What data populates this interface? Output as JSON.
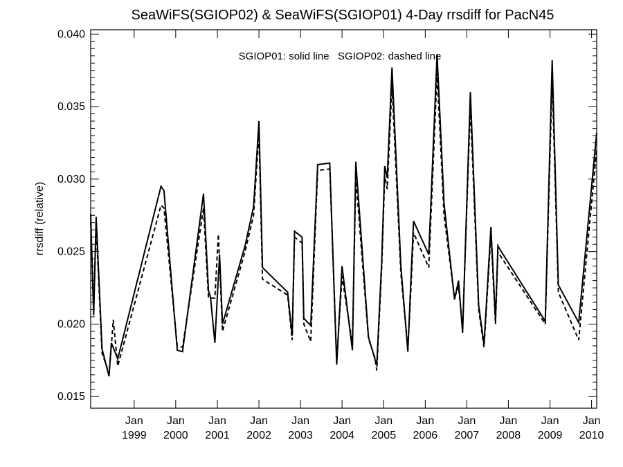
{
  "chart_data": {
    "type": "line",
    "title": "SeaWiFS(SGIOP02) & SeaWiFS(SGIOP01) 4-Day rrsdiff for PacN45",
    "ylabel": "rrsdiff (relative)",
    "xlabel": "",
    "annotation": "SGIOP01: solid line   SGIOP02: dashed line",
    "xlim": [
      "1997-12-15",
      "2010-02-15"
    ],
    "ylim": [
      0.0142,
      0.0403
    ],
    "y_ticks": [
      0.015,
      0.02,
      0.025,
      0.03,
      0.035,
      0.04
    ],
    "y_tick_labels": [
      "0.015",
      "0.020",
      "0.025",
      "0.030",
      "0.035",
      "0.040"
    ],
    "x_ticks": [
      {
        "date": "1999-01-01",
        "label_top": "Jan",
        "label_bottom": "1999"
      },
      {
        "date": "2000-01-01",
        "label_top": "Jan",
        "label_bottom": "2000"
      },
      {
        "date": "2001-01-01",
        "label_top": "Jan",
        "label_bottom": "2001"
      },
      {
        "date": "2002-01-01",
        "label_top": "Jan",
        "label_bottom": "2002"
      },
      {
        "date": "2003-01-01",
        "label_top": "Jan",
        "label_bottom": "2003"
      },
      {
        "date": "2004-01-01",
        "label_top": "Jan",
        "label_bottom": "2004"
      },
      {
        "date": "2005-01-01",
        "label_top": "Jan",
        "label_bottom": "2005"
      },
      {
        "date": "2006-01-01",
        "label_top": "Jan",
        "label_bottom": "2006"
      },
      {
        "date": "2007-01-01",
        "label_top": "Jan",
        "label_bottom": "2007"
      },
      {
        "date": "2008-01-01",
        "label_top": "Jan",
        "label_bottom": "2008"
      },
      {
        "date": "2009-01-01",
        "label_top": "Jan",
        "label_bottom": "2009"
      },
      {
        "date": "2010-01-01",
        "label_top": "Jan",
        "label_bottom": "2010"
      }
    ],
    "series": [
      {
        "name": "SGIOP01",
        "style": "solid",
        "x": [
          "1997-12-15",
          "1998-01-10",
          "1998-02-01",
          "1998-03-25",
          "1998-05-25",
          "1998-06-15",
          "1998-08-10",
          "1999-08-25",
          "1999-09-20",
          "2000-01-15",
          "2000-03-01",
          "2000-09-01",
          "2000-10-15",
          "2000-11-01",
          "2000-12-10",
          "2001-01-20",
          "2001-02-15",
          "2001-09-01",
          "2001-11-15",
          "2002-01-01",
          "2002-02-01",
          "2002-09-10",
          "2002-10-20",
          "2002-11-10",
          "2003-01-15",
          "2003-01-30",
          "2003-04-01",
          "2003-06-01",
          "2003-09-15",
          "2003-11-15",
          "2004-01-01",
          "2004-04-01",
          "2004-05-01",
          "2004-08-20",
          "2004-10-15",
          "2004-11-01",
          "2004-12-15",
          "2005-01-10",
          "2005-02-01",
          "2005-03-15",
          "2005-06-01",
          "2005-08-01",
          "2005-08-25",
          "2005-09-20",
          "2006-02-01",
          "2006-04-15",
          "2006-06-15",
          "2006-09-15",
          "2006-10-20",
          "2006-11-25",
          "2007-02-01",
          "2007-04-15",
          "2007-06-01",
          "2007-08-01",
          "2007-09-10",
          "2007-10-01",
          "2007-10-15",
          "2008-11-20",
          "2009-01-20",
          "2009-03-15",
          "2009-09-10",
          "2010-02-15"
        ],
        "y": [
          0.0276,
          0.0206,
          0.0274,
          0.0183,
          0.0164,
          0.0187,
          0.0176,
          0.0295,
          0.0292,
          0.0182,
          0.0181,
          0.029,
          0.0223,
          0.0219,
          0.0187,
          0.0248,
          0.02,
          0.0254,
          0.0281,
          0.034,
          0.0239,
          0.0222,
          0.0192,
          0.0264,
          0.026,
          0.0204,
          0.0199,
          0.031,
          0.0311,
          0.0172,
          0.024,
          0.0182,
          0.0312,
          0.0191,
          0.0176,
          0.0172,
          0.0244,
          0.0309,
          0.0301,
          0.0377,
          0.024,
          0.0181,
          0.0225,
          0.0271,
          0.0248,
          0.0386,
          0.0283,
          0.0217,
          0.023,
          0.0194,
          0.036,
          0.0213,
          0.0186,
          0.0267,
          0.0203,
          0.0254,
          0.0252,
          0.0202,
          0.0382,
          0.0227,
          0.0201,
          0.0332
        ]
      },
      {
        "name": "SGIOP02",
        "style": "dashed",
        "x": [
          "1997-12-15",
          "1998-01-10",
          "1998-02-01",
          "1998-03-25",
          "1998-05-25",
          "1998-06-15",
          "1998-07-01",
          "1998-08-10",
          "1999-08-25",
          "1999-09-20",
          "2000-01-15",
          "2000-03-01",
          "2000-09-01",
          "2000-10-15",
          "2000-11-01",
          "2000-12-10",
          "2001-01-10",
          "2001-02-15",
          "2001-09-01",
          "2001-11-15",
          "2002-01-01",
          "2002-02-01",
          "2002-09-10",
          "2002-10-20",
          "2002-11-10",
          "2003-01-15",
          "2003-01-30",
          "2003-04-01",
          "2003-06-01",
          "2003-09-15",
          "2003-11-15",
          "2004-01-01",
          "2004-04-01",
          "2004-05-01",
          "2004-08-20",
          "2004-10-15",
          "2004-11-01",
          "2004-12-15",
          "2005-01-10",
          "2005-02-01",
          "2005-03-15",
          "2005-06-01",
          "2005-08-01",
          "2005-08-25",
          "2005-09-20",
          "2006-02-01",
          "2006-04-15",
          "2006-06-15",
          "2006-09-15",
          "2006-10-20",
          "2006-11-25",
          "2007-02-01",
          "2007-04-15",
          "2007-06-01",
          "2007-08-01",
          "2007-09-10",
          "2007-10-01",
          "2007-10-15",
          "2008-11-20",
          "2009-01-20",
          "2009-03-15",
          "2009-09-10",
          "2010-02-15"
        ],
        "y": [
          0.027,
          0.021,
          0.0268,
          0.018,
          0.0166,
          0.0185,
          0.0203,
          0.0171,
          0.0282,
          0.028,
          0.0185,
          0.0184,
          0.028,
          0.0218,
          0.0218,
          0.0218,
          0.0262,
          0.0195,
          0.025,
          0.0275,
          0.0332,
          0.0231,
          0.022,
          0.0189,
          0.026,
          0.0256,
          0.02,
          0.0188,
          0.0306,
          0.0307,
          0.0175,
          0.0233,
          0.0186,
          0.0301,
          0.019,
          0.0177,
          0.0168,
          0.024,
          0.0302,
          0.0293,
          0.0365,
          0.0235,
          0.0183,
          0.0219,
          0.0263,
          0.0239,
          0.0373,
          0.0275,
          0.0218,
          0.0226,
          0.0197,
          0.035,
          0.021,
          0.0184,
          0.0262,
          0.02,
          0.025,
          0.0248,
          0.02,
          0.037,
          0.0222,
          0.0189,
          0.0321
        ]
      }
    ]
  }
}
